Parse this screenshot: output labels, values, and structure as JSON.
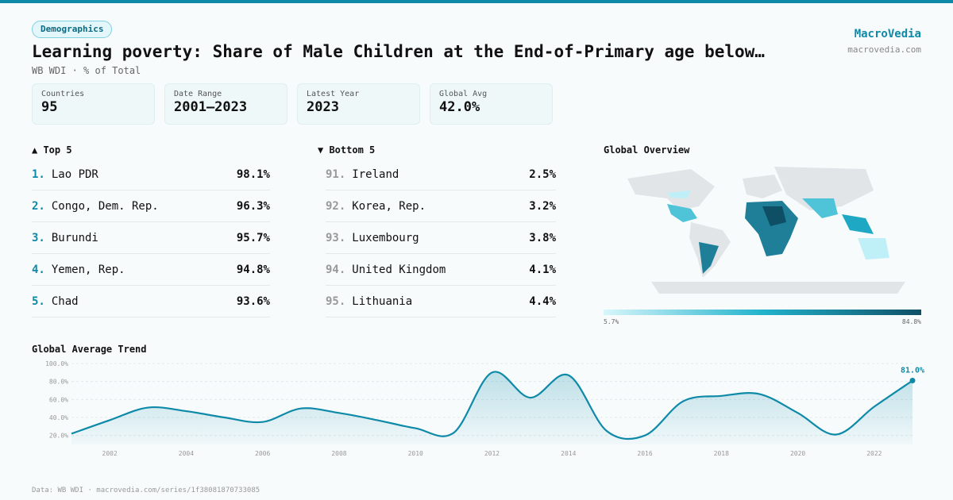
{
  "header": {
    "tag": "Demographics",
    "title": "Learning poverty: Share of Male Children at the End-of-Primary age below…",
    "subtitle": "WB WDI · % of Total",
    "brand": "MacroVedia",
    "site": "macrovedia.com"
  },
  "stats": [
    {
      "label": "Countries",
      "value": "95"
    },
    {
      "label": "Date Range",
      "value": "2001–2023"
    },
    {
      "label": "Latest Year",
      "value": "2023"
    },
    {
      "label": "Global Avg",
      "value": "42.0%"
    }
  ],
  "top": {
    "heading": "▲ Top 5",
    "rows": [
      {
        "rank": "1.",
        "name": "Lao PDR",
        "value": "98.1%"
      },
      {
        "rank": "2.",
        "name": "Congo, Dem. Rep.",
        "value": "96.3%"
      },
      {
        "rank": "3.",
        "name": "Burundi",
        "value": "95.7%"
      },
      {
        "rank": "4.",
        "name": "Yemen, Rep.",
        "value": "94.8%"
      },
      {
        "rank": "5.",
        "name": "Chad",
        "value": "93.6%"
      }
    ]
  },
  "bottom": {
    "heading": "▼ Bottom 5",
    "rows": [
      {
        "rank": "91.",
        "name": "Ireland",
        "value": "2.5%"
      },
      {
        "rank": "92.",
        "name": "Korea, Rep.",
        "value": "3.2%"
      },
      {
        "rank": "93.",
        "name": "Luxembourg",
        "value": "3.8%"
      },
      {
        "rank": "94.",
        "name": "United Kingdom",
        "value": "4.1%"
      },
      {
        "rank": "95.",
        "name": "Lithuania",
        "value": "4.4%"
      }
    ]
  },
  "map": {
    "title": "Global Overview",
    "min_label": "5.7%",
    "max_label": "84.8%"
  },
  "chart_data": {
    "type": "line",
    "title": "Global Average Trend",
    "x": [
      2001,
      2002,
      2003,
      2004,
      2005,
      2006,
      2007,
      2008,
      2009,
      2010,
      2011,
      2012,
      2013,
      2014,
      2015,
      2016,
      2017,
      2018,
      2019,
      2020,
      2021,
      2022,
      2023
    ],
    "values": [
      22,
      37,
      51,
      47,
      40,
      35,
      50,
      45,
      37,
      28,
      23,
      90,
      62,
      87,
      25,
      20,
      58,
      64,
      66,
      45,
      21,
      52,
      81
    ],
    "value_labels": [
      null,
      null,
      null,
      null,
      null,
      null,
      null,
      null,
      null,
      null,
      null,
      null,
      null,
      null,
      null,
      null,
      null,
      null,
      null,
      null,
      null,
      null,
      "81.0%"
    ],
    "color": "#0e8aa8",
    "xlim": [
      2001,
      2023
    ],
    "xticks": [
      2002,
      2004,
      2006,
      2008,
      2010,
      2012,
      2014,
      2016,
      2018,
      2020,
      2022
    ],
    "ylim": [
      10,
      100
    ],
    "yticks": [
      {
        "value": 20,
        "label": "20.0%"
      },
      {
        "value": 40,
        "label": "40.0%"
      },
      {
        "value": 60,
        "label": "60.0%"
      },
      {
        "value": 80,
        "label": "80.0%"
      },
      {
        "value": 100,
        "label": "100.0%"
      }
    ],
    "grid": true
  },
  "footer": "Data: WB WDI · macrovedia.com/series/1f38081870733085"
}
